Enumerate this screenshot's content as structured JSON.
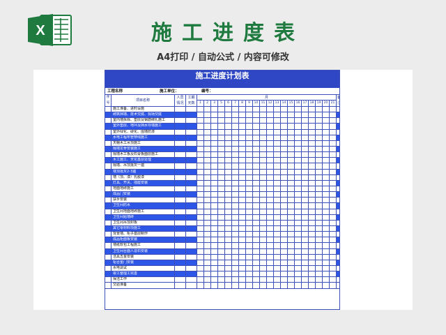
{
  "header": {
    "title": "施工进度表",
    "subtitle": "A4打印 / 自动公式 / 内容可修改",
    "logo_icon": "excel-logo-icon",
    "logo_letter": "X"
  },
  "colors": {
    "brand_green": "#1e7a3e",
    "sheet_blue": "#2f47c4",
    "row_blue": "#2d55e6"
  },
  "sheet": {
    "title": "施工进度计划表",
    "project_label": "工程名称",
    "unit_label": "施工单位：",
    "number_label": "编号：",
    "columns": {
      "seq": "序号",
      "name": "项目名称",
      "workers_top": "人员",
      "workers_bottom": "情况",
      "workers_top2": "工期",
      "workers_bottom2": "天数",
      "month": "月",
      "note_top": "备",
      "note_bottom": "注"
    },
    "days": [
      "1",
      "2",
      "3",
      "5",
      "6",
      "7",
      "8",
      "9",
      "10",
      "11",
      "12",
      "13",
      "14",
      "15",
      "16",
      "17",
      "18",
      "19",
      "20",
      "21"
    ],
    "rows": [
      {
        "name": "施工准备、进时设施",
        "style": "white"
      },
      {
        "name": "砌筑挡墙、技术交底、现场交底",
        "style": "blue"
      },
      {
        "name": "室内墙拆除、垫层及钢筋绑扎施工",
        "style": "white"
      },
      {
        "name": "室外垫层、地坪及挡水导墙施工",
        "style": "blue"
      },
      {
        "name": "室外绿化、硬化、围墙防渗",
        "style": "white"
      },
      {
        "name": "水电工程布管穿线施工",
        "style": "blue"
      },
      {
        "name": "天棚木工吊顶施工",
        "style": "white"
      },
      {
        "name": "隔墙龙骨安装施工",
        "style": "blue"
      },
      {
        "name": "隔墙木工板及石膏板面层施工",
        "style": "white"
      },
      {
        "name": "木工施工、天花基层处理",
        "style": "blue"
      },
      {
        "name": "隔墙、吊顶批灰一遍",
        "style": "white"
      },
      {
        "name": "墙顶批灰2-3遍",
        "style": "blue"
      },
      {
        "name": "墙（顶、漆）乳胶漆",
        "style": "white"
      },
      {
        "name": "灯具、开关、插座安装",
        "style": "blue"
      },
      {
        "name": "地面地砖施工",
        "style": "white"
      },
      {
        "name": "成品门安装",
        "style": "blue"
      },
      {
        "name": "扶手安装",
        "style": "white"
      },
      {
        "name": "卫生间防水",
        "style": "blue"
      },
      {
        "name": "卫生间地面地砖施工",
        "style": "white"
      },
      {
        "name": "卫生间贴墙砖",
        "style": "blue"
      },
      {
        "name": "卫生间吊顶封板",
        "style": "white"
      },
      {
        "name": "其它零材料项施工",
        "style": "blue"
      },
      {
        "name": "背景墙、柜子基层制作",
        "style": "white"
      },
      {
        "name": "成品柜面板安装",
        "style": "blue"
      },
      {
        "name": "墙纸软包工程施工",
        "style": "white"
      },
      {
        "name": "卫生间台面人造石安装",
        "style": "blue"
      },
      {
        "name": "洁具五金安装",
        "style": "white"
      },
      {
        "name": "铝合金门安装",
        "style": "blue"
      },
      {
        "name": "水电调试",
        "style": "white"
      },
      {
        "name": "竣工整理工完善",
        "style": "blue"
      },
      {
        "name": "保洁工作",
        "style": "white"
      },
      {
        "name": "交验准备",
        "style": "white"
      }
    ]
  }
}
